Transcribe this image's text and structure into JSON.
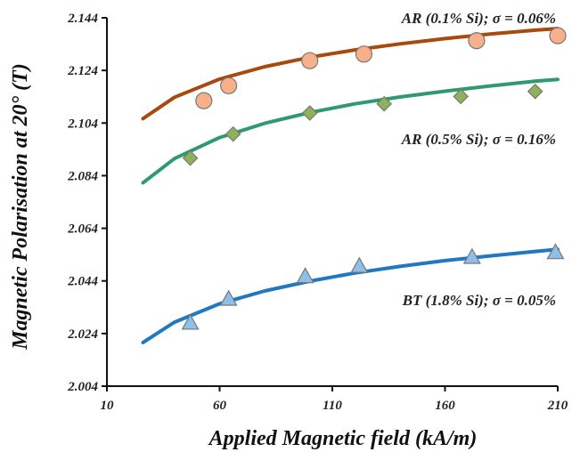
{
  "chart_data": {
    "type": "scatter",
    "xlabel": "Applied Magnetic field (kA/m)",
    "ylabel": "Magnetic Polarisation at 20° (T)",
    "xlim": [
      10,
      210
    ],
    "ylim": [
      2.004,
      2.144
    ],
    "xticks": [
      10,
      60,
      110,
      160,
      210
    ],
    "yticks": [
      2.004,
      2.024,
      2.044,
      2.064,
      2.084,
      2.104,
      2.124,
      2.144
    ],
    "xtick_labels": [
      "10",
      "60",
      "110",
      "160",
      "210"
    ],
    "ytick_labels": [
      "2.004",
      "2.024",
      "2.044",
      "2.064",
      "2.084",
      "2.104",
      "2.124",
      "2.144"
    ],
    "grid": false,
    "series": [
      {
        "name": "AR (0.1% Si); σ = 0.06%",
        "marker": "circle",
        "marker_color": "#f7b08a",
        "line_color": "#a84a10",
        "x": [
          53,
          64,
          100,
          124,
          174,
          210
        ],
        "y": [
          2.1125,
          2.1182,
          2.1277,
          2.1302,
          2.1353,
          2.1372
        ],
        "fit": {
          "x": [
            26,
            40,
            60,
            80,
            100,
            120,
            140,
            160,
            180,
            200,
            210
          ],
          "y": [
            2.1057,
            2.1138,
            2.1207,
            2.1254,
            2.129,
            2.1318,
            2.1341,
            2.1361,
            2.1378,
            2.1393,
            2.1399
          ]
        }
      },
      {
        "name": "AR (0.5% Si); σ = 0.16%",
        "marker": "diamond",
        "marker_color": "#8eb25a",
        "line_color": "#2f9a70",
        "x": [
          47,
          66,
          100,
          133,
          167,
          200
        ],
        "y": [
          2.0907,
          2.0998,
          2.1078,
          2.1113,
          2.1141,
          2.116
        ],
        "fit": {
          "x": [
            26,
            40,
            60,
            80,
            100,
            120,
            140,
            160,
            180,
            200,
            210
          ],
          "y": [
            2.0813,
            2.0905,
            2.0985,
            2.1039,
            2.108,
            2.1113,
            2.1139,
            2.1161,
            2.1181,
            2.1199,
            2.1206
          ]
        }
      },
      {
        "name": "BT (1.8% Si); σ = 0.05%",
        "marker": "triangle",
        "marker_color": "#8fbfe8",
        "line_color": "#1f78c0",
        "x": [
          47,
          64,
          98,
          122,
          172,
          209
        ],
        "y": [
          2.0281,
          2.0372,
          2.0458,
          2.0497,
          2.0531,
          2.0549
        ],
        "fit": {
          "x": [
            26,
            40,
            60,
            80,
            100,
            120,
            140,
            160,
            180,
            200,
            210
          ],
          "y": [
            2.0206,
            2.0283,
            2.0353,
            2.0402,
            2.0439,
            2.047,
            2.0495,
            2.0517,
            2.0535,
            2.0552,
            2.056
          ]
        }
      }
    ]
  }
}
